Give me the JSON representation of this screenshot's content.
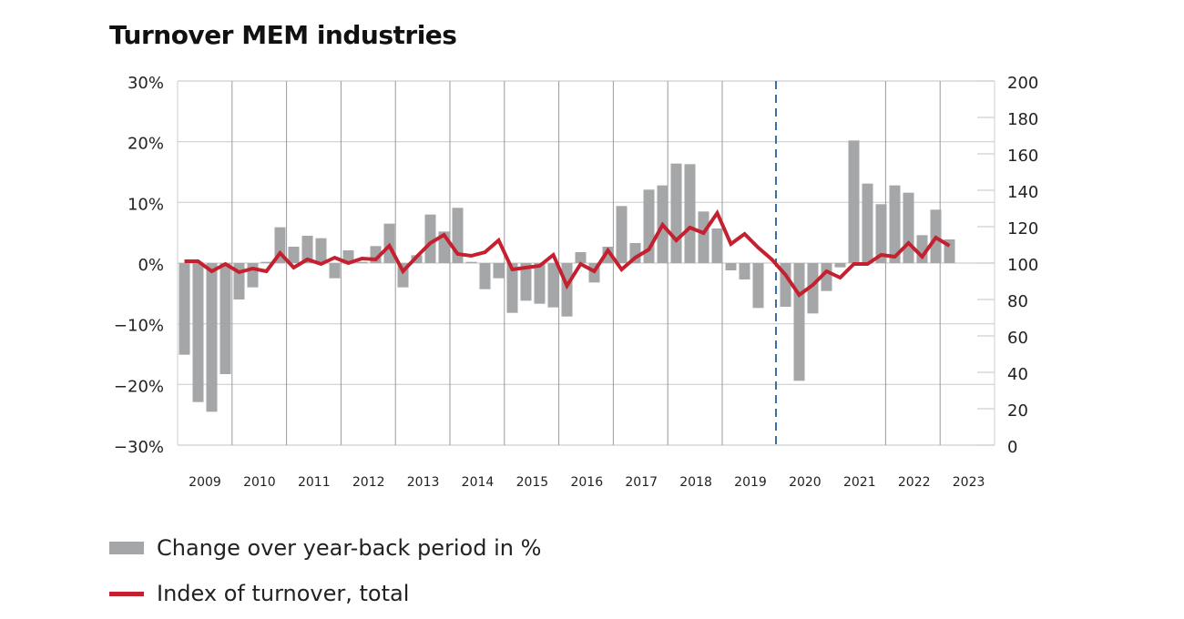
{
  "chart_data": {
    "type": "bar+line",
    "title": "Turnover MEM industries",
    "x_tick_labels": [
      "2009",
      "2010",
      "2011",
      "2012",
      "2013",
      "2014",
      "2015",
      "2016",
      "2017",
      "2018",
      "2019",
      "2020",
      "2021",
      "2022",
      "2023"
    ],
    "periods": "quarterly, 2009 Q1 – 2023 Q1",
    "y_left": {
      "ylim": [
        -30,
        30
      ],
      "ticks": [
        "30%",
        "20%",
        "10%",
        "0%",
        "−10%",
        "−20%",
        "−30%"
      ],
      "tick_values": [
        30,
        20,
        10,
        0,
        -10,
        -20,
        -30
      ]
    },
    "y_right": {
      "ylim": [
        0,
        200
      ],
      "ticks": [
        "200",
        "180",
        "160",
        "140",
        "120",
        "100",
        "80",
        "60",
        "40",
        "20",
        "0"
      ],
      "tick_values": [
        200,
        180,
        160,
        140,
        120,
        100,
        80,
        60,
        40,
        20,
        0
      ]
    },
    "grid": true,
    "legend_position": "bottom",
    "marker_line": {
      "period_index": 43,
      "style": "dashed",
      "color": "#3a6fa8"
    },
    "series": [
      {
        "name": "Change over year-back period in %",
        "type": "bar",
        "axis": "left",
        "color": "#a4a6a7",
        "values": [
          -15.1,
          -22.9,
          -24.5,
          -18.3,
          -6.0,
          -4.0,
          0.2,
          5.9,
          2.7,
          4.5,
          4.1,
          -2.5,
          2.1,
          0.2,
          2.8,
          6.5,
          -4.0,
          1.3,
          8.0,
          5.2,
          9.1,
          0.2,
          -4.3,
          -2.5,
          -8.2,
          -6.2,
          -6.7,
          -7.3,
          -8.8,
          1.8,
          -3.2,
          2.7,
          9.4,
          3.3,
          12.1,
          12.8,
          16.4,
          16.3,
          8.5,
          5.7,
          -1.2,
          -2.7,
          -7.4,
          null,
          -7.2,
          -19.4,
          -8.3,
          -4.6,
          -0.7,
          20.2,
          13.1,
          9.7,
          12.8,
          11.6,
          4.6,
          8.8,
          3.9
        ]
      },
      {
        "name": "Index of turnover, total",
        "type": "line",
        "axis": "right",
        "color": "#c5202f",
        "values": [
          101,
          101,
          95.5,
          99.5,
          95,
          97,
          95.5,
          105.5,
          97.5,
          102,
          99.5,
          103,
          100,
          102.5,
          102,
          109.5,
          95.5,
          103.5,
          111,
          115.5,
          105,
          104,
          106,
          112.5,
          96.5,
          97.5,
          98.5,
          104.5,
          87.5,
          99.5,
          95.5,
          107,
          96.5,
          103,
          107.5,
          121,
          112.5,
          119.5,
          116.5,
          127.5,
          110.5,
          116,
          108.5,
          102,
          93.5,
          82.5,
          88,
          95.5,
          92,
          99.5,
          99.5,
          104.5,
          103.5,
          111,
          103.5,
          114,
          109.5
        ]
      }
    ]
  }
}
